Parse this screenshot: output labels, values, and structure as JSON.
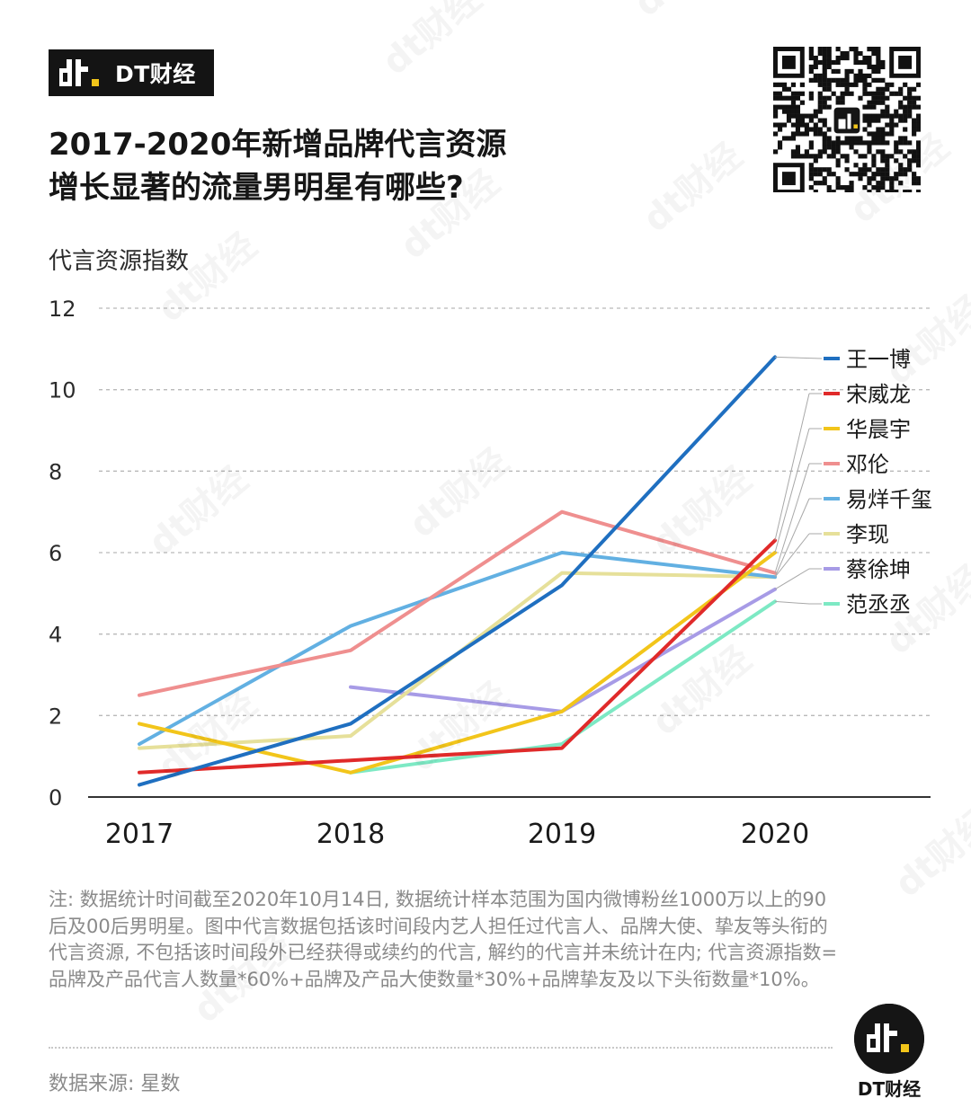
{
  "brand": {
    "name": "DT财经",
    "logo_icon": "dt-logo-icon"
  },
  "title": {
    "line1": "2017-2020年新增品牌代言资源",
    "line2": "增长显著的流量男明星有哪些?"
  },
  "chart_data": {
    "type": "line",
    "title": "2017-2020年新增品牌代言资源增长显著的流量男明星有哪些?",
    "xlabel": "",
    "ylabel": "代言资源指数",
    "ylim": [
      0,
      12
    ],
    "yticks": [
      0,
      2,
      4,
      6,
      8,
      10,
      12
    ],
    "grid": "horizontal-dashed",
    "categories": [
      "2017",
      "2018",
      "2019",
      "2020"
    ],
    "legend_position": "right",
    "series": [
      {
        "name": "王一博",
        "color": "#1f6fc0",
        "values": [
          0.3,
          1.8,
          5.2,
          10.8
        ]
      },
      {
        "name": "宋威龙",
        "color": "#e02a2a",
        "values": [
          0.6,
          0.9,
          1.2,
          6.3
        ]
      },
      {
        "name": "华晨宇",
        "color": "#f2c51a",
        "values": [
          1.8,
          0.6,
          2.1,
          6.0
        ]
      },
      {
        "name": "邓伦",
        "color": "#ef8f8f",
        "values": [
          2.5,
          3.6,
          7.0,
          5.5
        ]
      },
      {
        "name": "易烊千玺",
        "color": "#62b0e2",
        "values": [
          1.3,
          4.2,
          6.0,
          5.4
        ]
      },
      {
        "name": "李现",
        "color": "#e6e09a",
        "values": [
          1.2,
          1.5,
          5.5,
          5.4
        ]
      },
      {
        "name": "蔡徐坤",
        "color": "#a79be6",
        "values": [
          null,
          2.7,
          2.1,
          5.1
        ]
      },
      {
        "name": "范丞丞",
        "color": "#7de9c4",
        "values": [
          null,
          0.6,
          1.3,
          4.8
        ]
      }
    ]
  },
  "footnote": "注: 数据统计时间截至2020年10月14日, 数据统计样本范围为国内微博粉丝1000万以上的90后及00后男明星。图中代言数据包括该时间段内艺人担任过代言人、品牌大使、挚友等头衔的代言资源, 不包括该时间段外已经获得或续约的代言, 解约的代言并未统计在内; 代言资源指数=品牌及产品代言人数量*60%+品牌及产品大使数量*30%+品牌挚友及以下头衔数量*10%。",
  "source": "数据来源: 星数",
  "qr_icon": "qr-code-icon",
  "watermark_text": "dt财经"
}
